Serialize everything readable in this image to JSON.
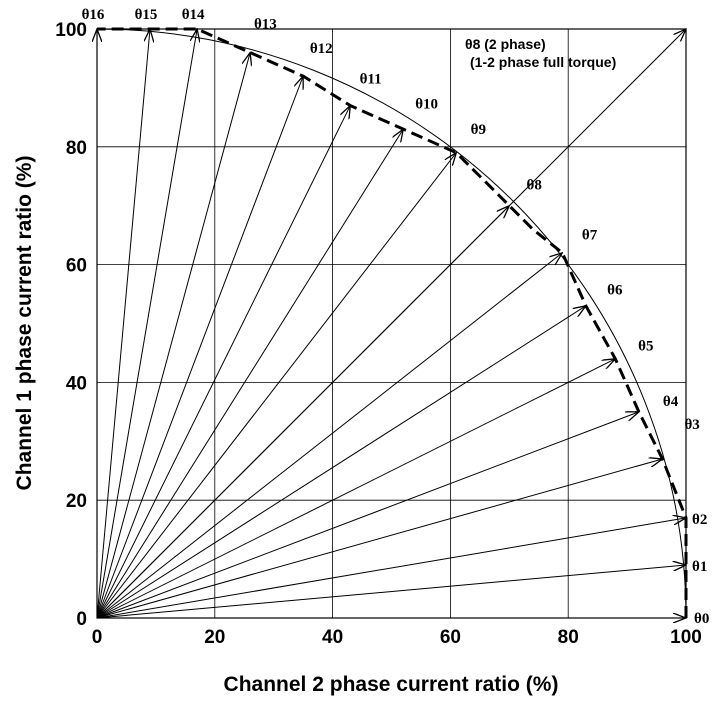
{
  "chart_data": {
    "type": "vector",
    "xlabel": "Channel 2 phase current ratio (%)",
    "ylabel": "Channel 1 phase current ratio (%)",
    "xlim": [
      0,
      100
    ],
    "ylim": [
      0,
      100
    ],
    "xticks": [
      "0",
      "20",
      "40",
      "60",
      "80",
      "100"
    ],
    "yticks": [
      "0",
      "20",
      "40",
      "60",
      "80",
      "100"
    ],
    "grid": true,
    "angle_labels": [
      "θ0",
      "θ1",
      "θ2",
      "θ3",
      "θ4",
      "θ5",
      "θ6",
      "θ7",
      "θ8",
      "θ9",
      "θ10",
      "θ11",
      "θ12",
      "θ13",
      "θ14",
      "θ15",
      "θ16"
    ],
    "vectors": [
      {
        "label": "θ0",
        "x": 100,
        "y": 0
      },
      {
        "label": "θ1",
        "x": 100,
        "y": 9
      },
      {
        "label": "θ2",
        "x": 100,
        "y": 17
      },
      {
        "label": "θ3",
        "x": 96,
        "y": 27
      },
      {
        "label": "θ4",
        "x": 92,
        "y": 35
      },
      {
        "label": "θ5",
        "x": 88,
        "y": 44
      },
      {
        "label": "θ6",
        "x": 83,
        "y": 53
      },
      {
        "label": "θ7",
        "x": 79,
        "y": 62
      },
      {
        "label": "θ8",
        "x": 70,
        "y": 70
      },
      {
        "label": "θ9",
        "x": 61,
        "y": 79
      },
      {
        "label": "θ10",
        "x": 52,
        "y": 83
      },
      {
        "label": "θ11",
        "x": 43,
        "y": 87
      },
      {
        "label": "θ12",
        "x": 35,
        "y": 92
      },
      {
        "label": "θ13",
        "x": 26,
        "y": 96
      },
      {
        "label": "θ14",
        "x": 17,
        "y": 100
      },
      {
        "label": "θ15",
        "x": 9,
        "y": 100
      },
      {
        "label": "θ16",
        "x": 0,
        "y": 100
      }
    ],
    "diagonal_vector": {
      "x": 100,
      "y": 100
    },
    "dashed_trace": [
      [
        100,
        0
      ],
      [
        100,
        9
      ],
      [
        100,
        17
      ],
      [
        96,
        27
      ],
      [
        92,
        35
      ],
      [
        88,
        44
      ],
      [
        83,
        53
      ],
      [
        79,
        62
      ],
      [
        74,
        66
      ],
      [
        70,
        70
      ],
      [
        65,
        75
      ],
      [
        61,
        79
      ],
      [
        52,
        83
      ],
      [
        43,
        87
      ],
      [
        35,
        92
      ],
      [
        26,
        96
      ],
      [
        17,
        100
      ],
      [
        9,
        100
      ],
      [
        0,
        100
      ]
    ],
    "circle_radius": 100,
    "annotations": [
      "θ8 (2 phase)",
      "(1-2 phase full torque)"
    ]
  }
}
